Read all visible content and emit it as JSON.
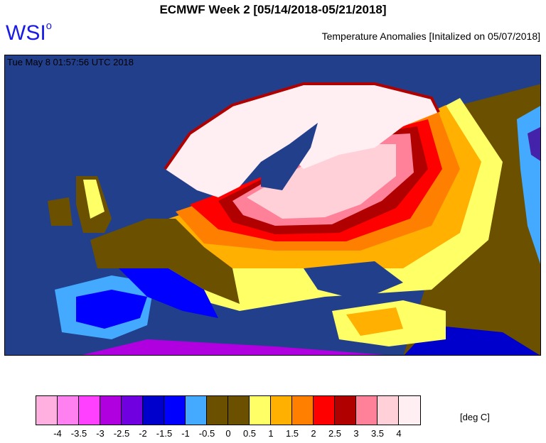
{
  "header": {
    "title": "ECMWF Week 2 [05/14/2018-05/21/2018]",
    "logo": "WSI",
    "logo_mark": "o",
    "subtitle": "Temperature Anomalies [Initalized on 05/07/2018]"
  },
  "map": {
    "timestamp": "Tue May  8 01:57:56 UTC 2018",
    "ocean_color": "#223f8c"
  },
  "legend": {
    "units": "[deg C]",
    "swatches": [
      "#ffb0e0",
      "#ff80f0",
      "#ff40ff",
      "#b000e0",
      "#7000e0",
      "#0000cc",
      "#0000ff",
      "#44aaff",
      "#6b5000",
      "#6b5000",
      "#ffff66",
      "#ffb000",
      "#ff8000",
      "#ff0000",
      "#b00000",
      "#ff8099",
      "#ffd0d8",
      "#ffeef2"
    ],
    "ticks": [
      "-4",
      "-3.5",
      "-3",
      "-2.5",
      "-2",
      "-1.5",
      "-1",
      "-0.5",
      "0",
      "0.5",
      "1",
      "1.5",
      "2",
      "2.5",
      "3",
      "3.5",
      "4"
    ]
  }
}
